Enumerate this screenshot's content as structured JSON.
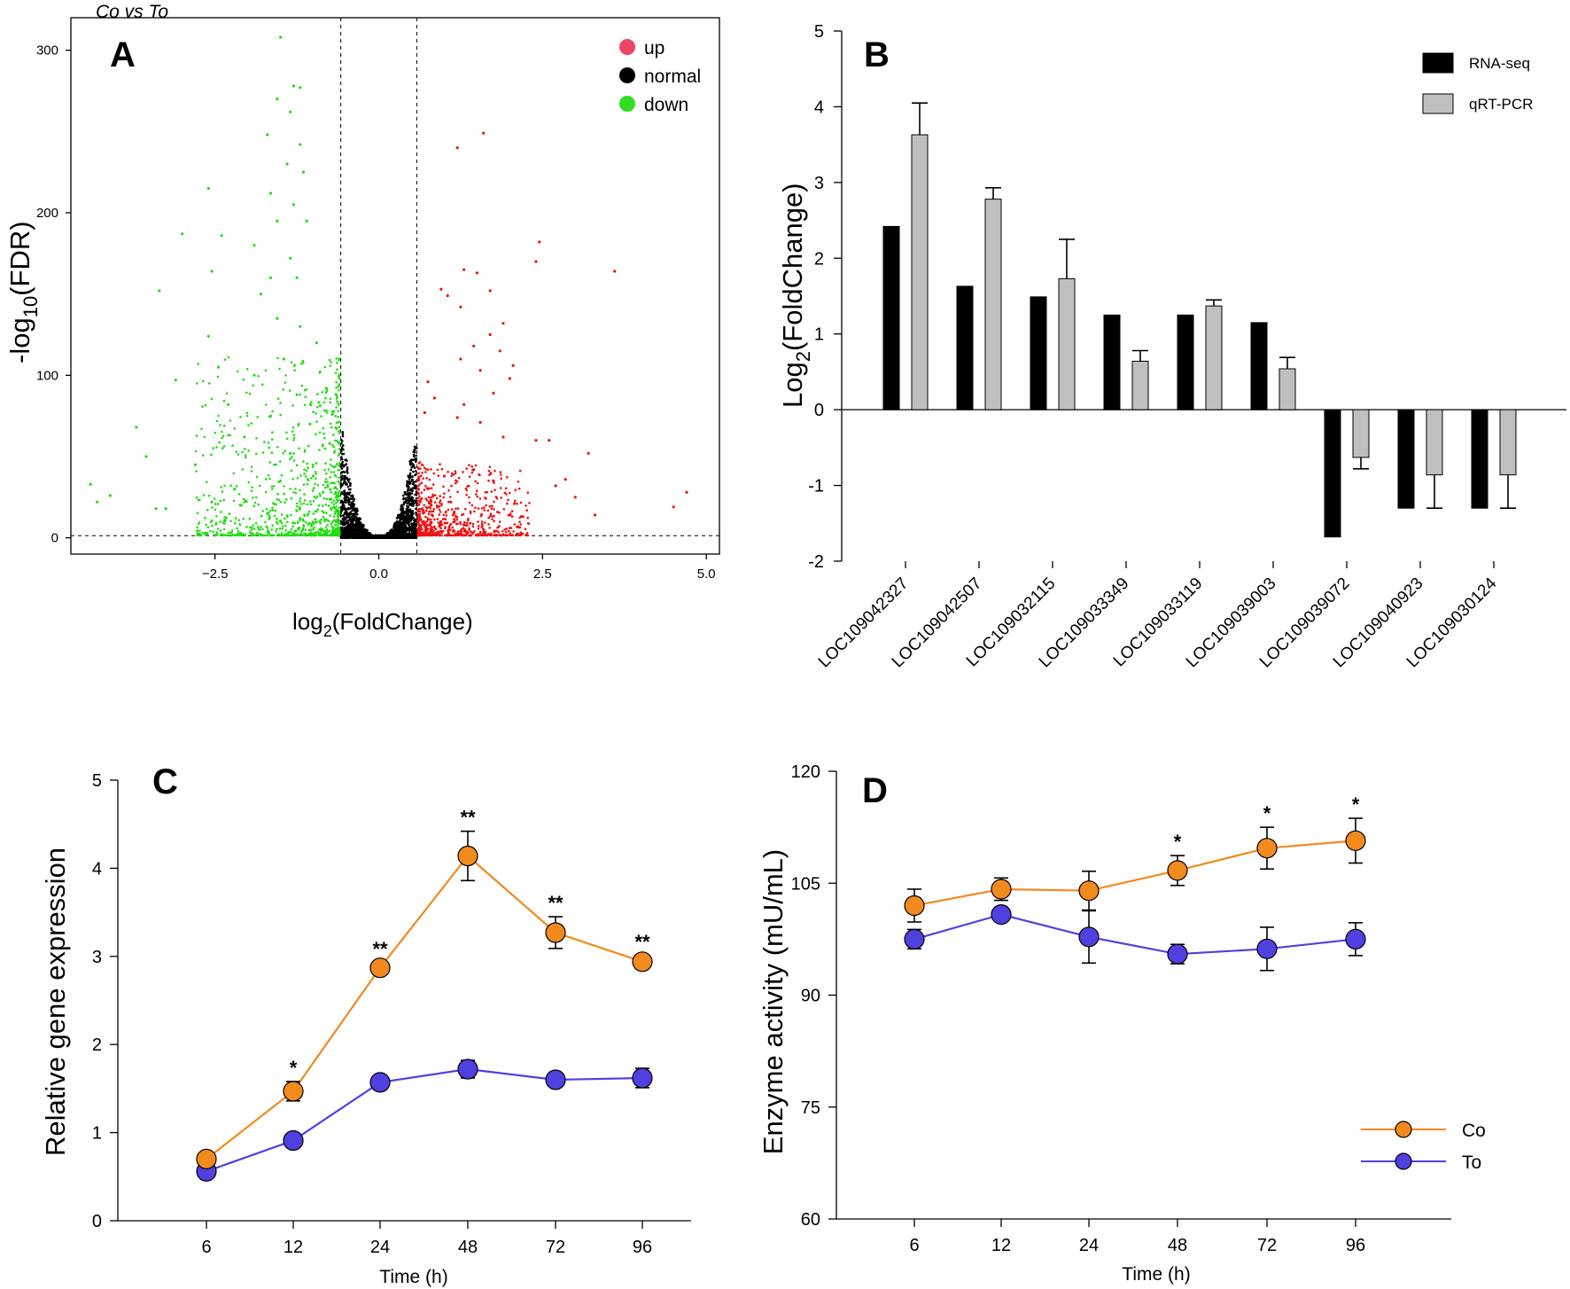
{
  "chart_data": [
    {
      "panel": "A",
      "type": "scatter",
      "title": "Co vs To",
      "panel_label": "A",
      "xlabel_main": "log",
      "xlabel_sub": "2",
      "xlabel_rest": "(FoldChange)",
      "ylabel_main": "-log",
      "ylabel_sub": "10",
      "ylabel_rest": "(FDR)",
      "xlim": [
        -4.7,
        5.2
      ],
      "ylim": [
        -10,
        320
      ],
      "xticks": [
        -2.5,
        0.0,
        2.5,
        5.0
      ],
      "xtick_labels": [
        "−2.5",
        "0.0",
        "2.5",
        "5.0"
      ],
      "yticks": [
        0,
        100,
        200,
        300
      ],
      "ytick_labels": [
        "0",
        "100",
        "200",
        "300"
      ],
      "thresholds": {
        "log2fc": [
          -0.58,
          0.58
        ],
        "neg_log10_fdr": 1.3
      },
      "legend": [
        {
          "name": "up",
          "color": "#ee1111"
        },
        {
          "name": "normal",
          "color": "#000000"
        },
        {
          "name": "down",
          "color": "#22dd11"
        }
      ],
      "legend_marker_colors": {
        "up": "#ee4466",
        "normal": "#000000",
        "down": "#33dd22"
      },
      "series": [
        {
          "name": "up",
          "color": "#ee1111",
          "points": [
            [
              1.6,
              249
            ],
            [
              1.2,
              240
            ],
            [
              2.45,
              182
            ],
            [
              2.4,
              170
            ],
            [
              1.3,
              165
            ],
            [
              3.6,
              164
            ],
            [
              1.5,
              163
            ],
            [
              1.7,
              152
            ],
            [
              0.95,
              153
            ],
            [
              1.05,
              149
            ],
            [
              1.25,
              142
            ],
            [
              1.9,
              132
            ],
            [
              1.7,
              125
            ],
            [
              1.45,
              118
            ],
            [
              1.85,
              115
            ],
            [
              2.05,
              106
            ],
            [
              1.25,
              110
            ],
            [
              1.55,
              103
            ],
            [
              2.0,
              98
            ],
            [
              0.75,
              96
            ],
            [
              0.85,
              86
            ],
            [
              1.75,
              89
            ],
            [
              1.3,
              82
            ],
            [
              0.7,
              77
            ],
            [
              1.2,
              74
            ],
            [
              1.55,
              71
            ],
            [
              2.6,
              60
            ],
            [
              2.4,
              60
            ],
            [
              3.2,
              52
            ],
            [
              1.9,
              62
            ],
            [
              2.85,
              36
            ],
            [
              2.7,
              32
            ],
            [
              3.0,
              25
            ],
            [
              4.7,
              28
            ],
            [
              4.5,
              19
            ],
            [
              3.3,
              14
            ],
            [
              2.2,
              13
            ],
            [
              1.15,
              15
            ],
            [
              0.95,
              10
            ],
            [
              0.72,
              6
            ],
            [
              0.95,
              4
            ],
            [
              1.3,
              8
            ],
            [
              1.6,
              5
            ],
            [
              1.0,
              38
            ],
            [
              1.45,
              42
            ],
            [
              1.75,
              35
            ],
            [
              0.8,
              20
            ],
            [
              1.1,
              22
            ]
          ]
        },
        {
          "name": "down",
          "color": "#22dd11",
          "points": [
            [
              -1.5,
              308
            ],
            [
              -1.3,
              278
            ],
            [
              -1.2,
              277
            ],
            [
              -1.55,
              270
            ],
            [
              -1.35,
              262
            ],
            [
              -1.7,
              248
            ],
            [
              -1.2,
              242
            ],
            [
              -1.4,
              230
            ],
            [
              -1.15,
              225
            ],
            [
              -2.6,
              215
            ],
            [
              -1.65,
              212
            ],
            [
              -1.3,
              205
            ],
            [
              -1.55,
              195
            ],
            [
              -1.1,
              195
            ],
            [
              -3.0,
              187
            ],
            [
              -2.4,
              186
            ],
            [
              -1.9,
              180
            ],
            [
              -1.35,
              172
            ],
            [
              -2.55,
              164
            ],
            [
              -1.25,
              160
            ],
            [
              -1.65,
              160
            ],
            [
              -3.35,
              152
            ],
            [
              -1.8,
              150
            ],
            [
              -2.6,
              124
            ],
            [
              -1.55,
              135
            ],
            [
              -1.2,
              130
            ],
            [
              -2.45,
              105
            ],
            [
              -1.45,
              110
            ],
            [
              -0.95,
              120
            ],
            [
              -3.1,
              97
            ],
            [
              -1.9,
              100
            ],
            [
              -1.25,
              88
            ],
            [
              -0.8,
              92
            ],
            [
              -3.7,
              68
            ],
            [
              -2.3,
              82
            ],
            [
              -1.65,
              75
            ],
            [
              -1.05,
              70
            ],
            [
              -2.05,
              62
            ],
            [
              -0.75,
              58
            ],
            [
              -4.4,
              33
            ],
            [
              -3.55,
              50
            ],
            [
              -2.8,
              45
            ],
            [
              -1.35,
              52
            ],
            [
              -4.3,
              22
            ],
            [
              -4.1,
              26
            ],
            [
              -3.4,
              18
            ],
            [
              -3.25,
              18
            ],
            [
              -2.55,
              22
            ],
            [
              -2.1,
              20
            ],
            [
              -1.7,
              15
            ],
            [
              -1.2,
              12
            ],
            [
              -0.9,
              10
            ],
            [
              -0.7,
              5
            ],
            [
              -1.0,
              38
            ],
            [
              -1.5,
              35
            ],
            [
              -2.2,
              30
            ],
            [
              -0.85,
              28
            ]
          ]
        },
        {
          "name": "normal",
          "color": "#000000",
          "shape": "V-shaped band |log2FC| < 0.58",
          "points": [
            [
              -0.55,
              65
            ],
            [
              -0.5,
              48
            ],
            [
              -0.45,
              36
            ],
            [
              -0.4,
              26
            ],
            [
              -0.35,
              18
            ],
            [
              -0.3,
              12
            ],
            [
              -0.25,
              8
            ],
            [
              -0.2,
              5
            ],
            [
              -0.15,
              3
            ],
            [
              -0.1,
              1.5
            ],
            [
              0.1,
              1.5
            ],
            [
              0.15,
              3
            ],
            [
              0.2,
              5
            ],
            [
              0.25,
              9
            ],
            [
              0.3,
              14
            ],
            [
              0.35,
              20
            ],
            [
              0.4,
              28
            ],
            [
              0.45,
              38
            ],
            [
              0.5,
              48
            ],
            [
              0.55,
              56
            ]
          ]
        }
      ]
    },
    {
      "panel": "B",
      "type": "bar",
      "panel_label": "B",
      "ylabel_main": "Log",
      "ylabel_sub": "2",
      "ylabel_rest": "(FoldChange)",
      "ylim": [
        -2,
        5
      ],
      "yticks": [
        -2,
        -1,
        0,
        1,
        2,
        3,
        4,
        5
      ],
      "ytick_labels": [
        "-2",
        "-1",
        "0",
        "1",
        "2",
        "3",
        "4",
        "5"
      ],
      "categories": [
        "LOC109042327",
        "LOC109042507",
        "LOC109032115",
        "LOC109033349",
        "LOC109033119",
        "LOC109039003",
        "LOC109039072",
        "LOC109040923",
        "LOC109030124"
      ],
      "series": [
        {
          "name": "RNA-seq",
          "color": "#000000",
          "values": [
            2.42,
            1.63,
            1.49,
            1.25,
            1.25,
            1.15,
            -1.68,
            -1.3,
            -1.3
          ],
          "errors": [
            0,
            0,
            0,
            0,
            0,
            0,
            0,
            0,
            0
          ]
        },
        {
          "name": "qRT-PCR",
          "color": "#bfbfbf",
          "values": [
            3.63,
            2.78,
            1.73,
            0.64,
            1.37,
            0.54,
            -0.63,
            -0.86,
            -0.86
          ],
          "errors": [
            0.42,
            0.15,
            0.52,
            0.14,
            0.08,
            0.15,
            0.15,
            0.44,
            0.44
          ]
        }
      ],
      "legend": [
        {
          "name": "RNA-seq",
          "color": "#000000"
        },
        {
          "name": "qRT-PCR",
          "color": "#bfbfbf"
        }
      ]
    },
    {
      "panel": "C",
      "type": "line",
      "panel_label": "C",
      "xlabel": "Time (h)",
      "ylabel": "Relative gene expression",
      "ylim": [
        0,
        5
      ],
      "yticks": [
        0,
        1,
        2,
        3,
        4,
        5
      ],
      "ytick_labels": [
        "0",
        "1",
        "2",
        "3",
        "4",
        "5"
      ],
      "categories": [
        "6",
        "12",
        "24",
        "48",
        "72",
        "96"
      ],
      "series": [
        {
          "name": "Co",
          "color": "#f28a1e",
          "values": [
            0.7,
            1.47,
            2.87,
            4.14,
            3.27,
            2.94
          ],
          "errors": [
            0.05,
            0.11,
            0.06,
            0.28,
            0.18,
            0.07
          ],
          "significance": [
            "",
            "*",
            "**",
            "**",
            "**",
            "**"
          ]
        },
        {
          "name": "To",
          "color": "#5040e0",
          "values": [
            0.56,
            0.91,
            1.57,
            1.72,
            1.6,
            1.62
          ],
          "errors": [
            0.03,
            0.06,
            0.05,
            0.1,
            0.05,
            0.11
          ]
        }
      ]
    },
    {
      "panel": "D",
      "type": "line",
      "panel_label": "D",
      "xlabel": "Time (h)",
      "ylabel": "Enzyme activity (mU/mL)",
      "ylim": [
        60,
        120
      ],
      "yticks": [
        60,
        75,
        90,
        105,
        120
      ],
      "ytick_labels": [
        "60",
        "75",
        "90",
        "105",
        "120"
      ],
      "categories": [
        "6",
        "12",
        "24",
        "48",
        "72",
        "96"
      ],
      "series": [
        {
          "name": "Co",
          "color": "#f28a1e",
          "values": [
            102.0,
            104.2,
            104.0,
            106.7,
            109.7,
            110.7
          ],
          "errors": [
            2.2,
            1.5,
            2.6,
            2.0,
            2.8,
            3.0
          ],
          "significance": [
            "",
            "",
            "",
            "*",
            "*",
            "*"
          ]
        },
        {
          "name": "To",
          "color": "#5040e0",
          "values": [
            97.5,
            100.8,
            97.8,
            95.5,
            96.2,
            97.5
          ],
          "errors": [
            1.3,
            0.8,
            3.5,
            1.3,
            2.9,
            2.2
          ]
        }
      ],
      "legend": [
        {
          "name": "Co",
          "color": "#f28a1e"
        },
        {
          "name": "To",
          "color": "#5040e0"
        }
      ]
    }
  ]
}
